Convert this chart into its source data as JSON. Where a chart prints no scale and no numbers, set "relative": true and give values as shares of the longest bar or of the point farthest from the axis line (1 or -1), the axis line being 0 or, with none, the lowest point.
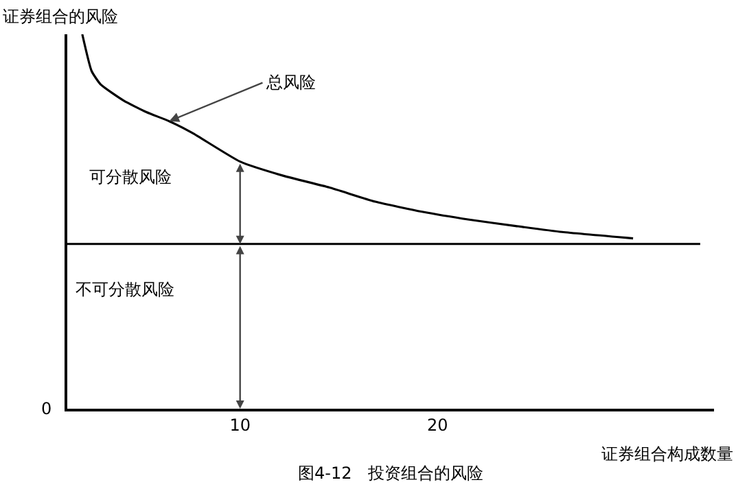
{
  "chart_data": {
    "type": "line",
    "title": "图4-12　投资组合的风险",
    "xlabel": "证券组合构成数量",
    "ylabel": "证券组合的风险",
    "relative": true,
    "xlim": [
      1.25,
      34
    ],
    "xticks": [
      10,
      20
    ],
    "series": [
      {
        "color": "#000000",
        "x": [
          2.01,
          2.48,
          2.94,
          4.1,
          5.26,
          6.41,
          7.57,
          10,
          12.2,
          14.51,
          16.84,
          19.22,
          21.6,
          23.96,
          26.3,
          29.9
        ],
        "values": [
          1.0,
          0.902,
          0.866,
          0.823,
          0.792,
          0.768,
          0.737,
          0.66,
          0.622,
          0.591,
          0.553,
          0.526,
          0.505,
          0.488,
          0.472,
          0.455
        ]
      },
      {
        "color": "#000000",
        "x": [
          1.25,
          33.3
        ],
        "values": [
          0.44,
          0.44
        ]
      }
    ],
    "annotations": [
      {
        "text": "总风险",
        "x": 6.41,
        "y": 0.768
      },
      "可分散风险",
      "不可分散风险",
      "0"
    ]
  }
}
